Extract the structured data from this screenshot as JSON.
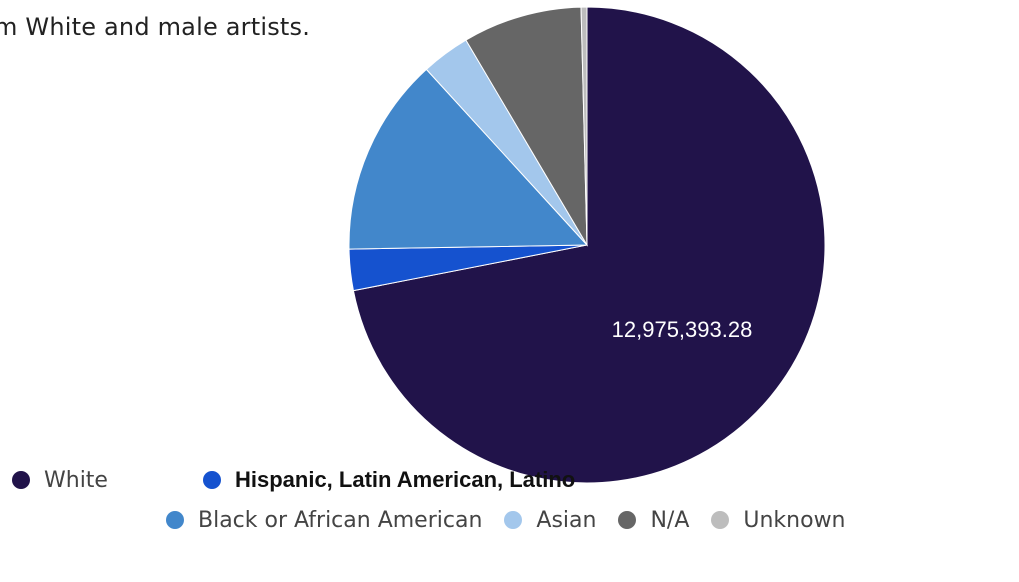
{
  "intro_text": "m White and male artists.",
  "chart_data": {
    "type": "pie",
    "title": "",
    "data_label": "12,975,393.28",
    "slices": [
      {
        "name": "White",
        "value": 72.0,
        "color": "#21134a"
      },
      {
        "name": "Hispanic, Latin American, Latino",
        "value": 2.8,
        "color": "#1552cf"
      },
      {
        "name": "Black or African American",
        "value": 13.5,
        "color": "#4287cb"
      },
      {
        "name": "Asian",
        "value": 3.3,
        "color": "#a3c7ec"
      },
      {
        "name": "N/A",
        "value": 8.1,
        "color": "#666666"
      },
      {
        "name": "Unknown",
        "value": 0.4,
        "color": "#bdbdbd"
      }
    ],
    "legend_position": "bottom"
  },
  "legend": [
    {
      "label": "White",
      "color": "#21134a"
    },
    {
      "label": "Hispanic, Latin American, Latino",
      "color": "#1552cf"
    },
    {
      "label": "Black or African American",
      "color": "#4287cb"
    },
    {
      "label": "Asian",
      "color": "#a3c7ec"
    },
    {
      "label": "N/A",
      "color": "#666666"
    },
    {
      "label": "Unknown",
      "color": "#bdbdbd"
    }
  ]
}
